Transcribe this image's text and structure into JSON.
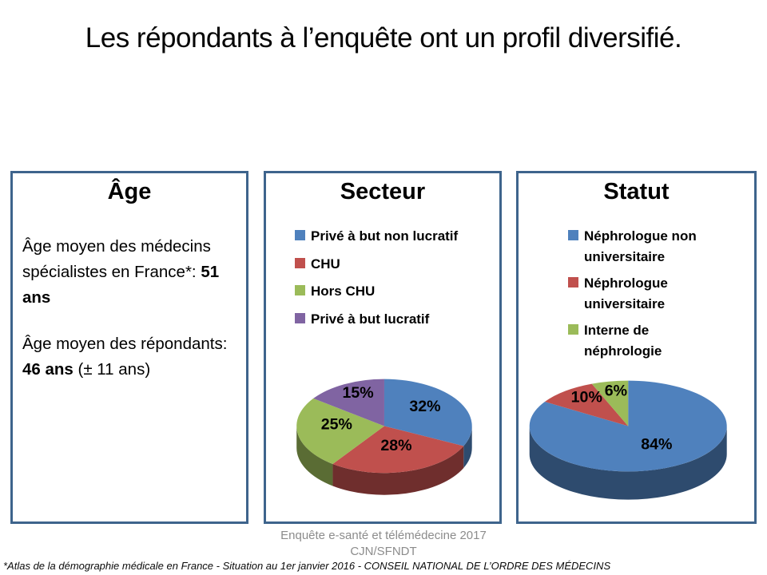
{
  "slide": {
    "title": "Les répondants à l’enquête ont un profil diversifié.",
    "footer_line1": "Enquête e-santé et télémédecine 2017",
    "footer_line2": "CJN/SFNDT",
    "footnote": "*Atlas de la démographie médicale en France - Situation au 1er janvier 2016  - CONSEIL NATIONAL DE L’ORDRE DES MÉDECINS"
  },
  "age_box": {
    "title": "Âge",
    "paragraphs": [
      {
        "segments": [
          {
            "text": "Âge moyen des médecins spécialistes en France*: ",
            "bold": false
          },
          {
            "text": "51 ans",
            "bold": true
          }
        ]
      },
      {
        "segments": [
          {
            "text": "Âge moyen des répondants: ",
            "bold": false
          },
          {
            "text": "46 ans",
            "bold": true
          },
          {
            "text": " (± 11 ans)",
            "bold": false
          }
        ]
      }
    ]
  },
  "colors": {
    "panel_border": "#3E648C",
    "accent_blue": "#4F81BD",
    "accent_red": "#C0504D",
    "accent_green": "#9BBB59",
    "accent_purple": "#8064A2",
    "footer_gray": "#8C8C8C"
  },
  "chart_data": [
    {
      "type": "pie",
      "title": "Secteur",
      "labels": [
        "Privé à but non lucratif",
        "CHU",
        "Hors CHU",
        "Privé à but lucratif"
      ],
      "values": [
        32,
        28,
        25,
        15
      ],
      "value_labels": [
        "32%",
        "28%",
        "25%",
        "15%"
      ],
      "colors": [
        "#4F81BD",
        "#C0504D",
        "#9BBB59",
        "#8064A2"
      ],
      "effect_3d": true,
      "start_angle_deg": 0,
      "direction": "clockwise",
      "legend_position": "top"
    },
    {
      "type": "pie",
      "title": "Statut",
      "labels": [
        "Néphrologue non universitaire",
        "Néphrologue universitaire",
        "Interne de néphrologie"
      ],
      "values": [
        84,
        10,
        6
      ],
      "value_labels": [
        "84%",
        "10%",
        "6%"
      ],
      "colors": [
        "#4F81BD",
        "#C0504D",
        "#9BBB59"
      ],
      "effect_3d": true,
      "start_angle_deg": 0,
      "direction": "clockwise",
      "legend_position": "top"
    }
  ]
}
